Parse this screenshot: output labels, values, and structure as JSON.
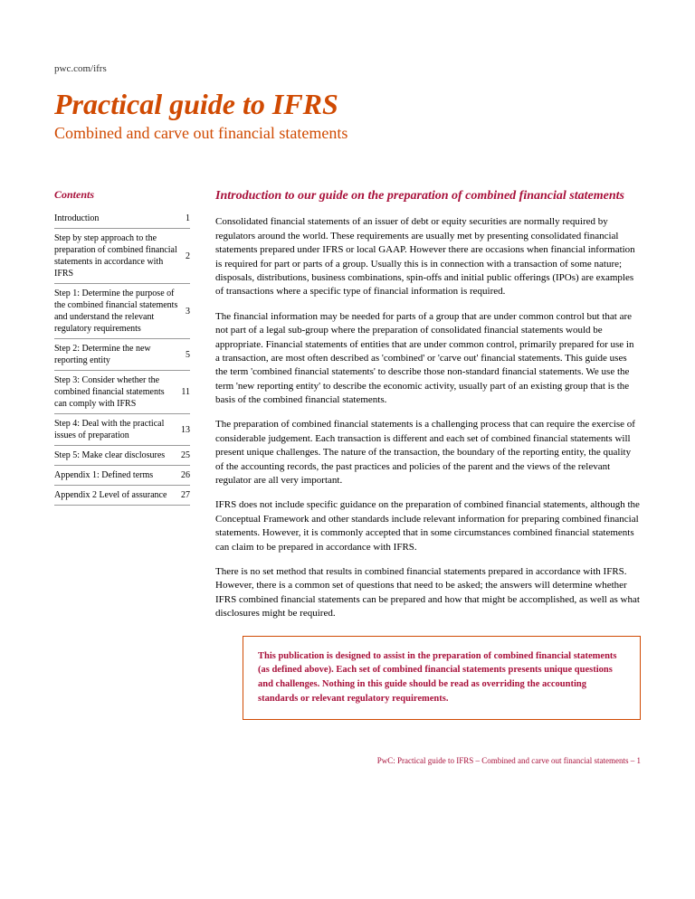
{
  "header": {
    "url": "pwc.com/ifrs",
    "title": "Practical guide to IFRS",
    "subtitle": "Combined and carve out financial statements"
  },
  "sidebar": {
    "heading": "Contents",
    "items": [
      {
        "label": "Introduction",
        "page": "1"
      },
      {
        "label": "Step by step approach to the preparation of combined financial statements in accordance with IFRS",
        "page": "2"
      },
      {
        "label": "Step 1: Determine the purpose of the combined financial statements and understand the relevant regulatory requirements",
        "page": "3"
      },
      {
        "label": "Step 2: Determine the new reporting entity",
        "page": "5"
      },
      {
        "label": "Step 3: Consider whether the combined financial statements can comply with IFRS",
        "page": "11"
      },
      {
        "label": "Step 4: Deal with the practical issues of preparation",
        "page": "13"
      },
      {
        "label": "Step 5: Make clear disclosures",
        "page": "25"
      },
      {
        "label": "Appendix 1: Defined terms",
        "page": "26"
      },
      {
        "label": "Appendix 2 Level of assurance",
        "page": "27"
      }
    ]
  },
  "main": {
    "heading": "Introduction to our guide on the preparation of combined financial statements",
    "paragraphs": [
      "Consolidated financial statements of an issuer of debt or equity securities are normally required by regulators around the world. These requirements are usually met by presenting consolidated financial statements prepared under IFRS or local GAAP. However there are occasions when financial information is required for part or parts of a group. Usually this is in connection with a transaction of some nature; disposals, distributions, business combinations, spin-offs and initial public offerings (IPOs) are examples of transactions where a specific type of financial information is required.",
      "The financial information may be needed for parts of a group that are under common control but that are not part of a legal sub-group where the preparation of consolidated financial statements would be appropriate. Financial statements of entities that are under common control, primarily prepared for use in a transaction, are most often described as 'combined' or 'carve out' financial statements. This guide uses the term 'combined financial statements' to describe those non-standard financial statements. We use the term 'new reporting entity' to describe the economic activity, usually part of an existing group that is the basis of the combined financial statements.",
      "The preparation of combined financial statements is a challenging process that can require the exercise of considerable judgement. Each transaction is different and each set of combined financial statements will present unique challenges. The nature of the transaction, the boundary of the reporting entity, the quality of the accounting records, the past practices and policies of the parent and the views of the relevant regulator are all very important.",
      "IFRS does not include specific guidance on the preparation of combined financial statements, although the Conceptual Framework and other standards include relevant information for preparing combined financial statements. However, it is commonly accepted that in some circumstances combined financial statements can claim to be prepared in accordance with IFRS.",
      "There is no set method that results in combined financial statements prepared in accordance with IFRS. However, there is a common set of questions that need to be asked; the answers will determine whether IFRS combined financial statements can be prepared and how that might be accomplished, as well as what disclosures might be required."
    ],
    "callout": "This publication is designed to assist in the preparation of combined financial statements (as defined above). Each set of combined financial statements presents unique questions and challenges. Nothing in this guide should be read as overriding the accounting standards or relevant regulatory requirements."
  },
  "footer": {
    "text": "PwC: Practical guide to IFRS – Combined and carve out financial statements – 1"
  }
}
